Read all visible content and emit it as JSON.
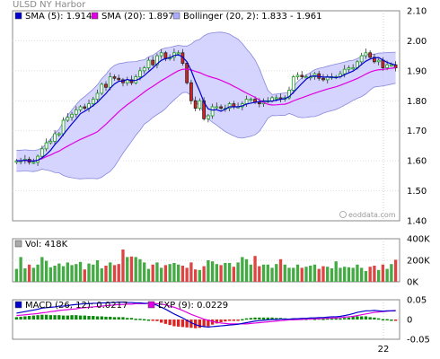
{
  "chart_data": [
    {
      "type": "candlestick",
      "title": "ULSD NY Harbor",
      "legend": [
        {
          "label": "SMA (5): 1.914",
          "color": "#0000cc"
        },
        {
          "label": "SMA (20): 1.897",
          "color": "#e000e0"
        },
        {
          "label": "Bollinger (20, 2): 1.833 - 1.961",
          "color": "#aaaaff"
        }
      ],
      "ylim": [
        1.4,
        2.1
      ],
      "yticks": [
        "2.10",
        "2.00",
        "1.90",
        "1.80",
        "1.70",
        "1.60",
        "1.50",
        "1.40"
      ],
      "close": [
        1.6,
        1.6,
        1.605,
        1.595,
        1.595,
        1.615,
        1.64,
        1.66,
        1.665,
        1.69,
        1.69,
        1.735,
        1.745,
        1.755,
        1.77,
        1.78,
        1.775,
        1.79,
        1.805,
        1.825,
        1.855,
        1.845,
        1.88,
        1.875,
        1.87,
        1.86,
        1.87,
        1.86,
        1.88,
        1.9,
        1.91,
        1.935,
        1.92,
        1.95,
        1.96,
        1.94,
        1.945,
        1.96,
        1.96,
        1.925,
        1.86,
        1.8,
        1.775,
        1.8,
        1.74,
        1.75,
        1.78,
        1.78,
        1.775,
        1.775,
        1.79,
        1.78,
        1.78,
        1.79,
        1.805,
        1.805,
        1.795,
        1.79,
        1.8,
        1.8,
        1.81,
        1.81,
        1.805,
        1.81,
        1.835,
        1.88,
        1.885,
        1.88,
        1.88,
        1.88,
        1.89,
        1.875,
        1.87,
        1.88,
        1.88,
        1.88,
        1.89,
        1.905,
        1.91,
        1.91,
        1.93,
        1.95,
        1.96,
        1.945,
        1.93,
        1.935,
        1.91,
        1.92,
        1.92,
        1.91
      ],
      "sma20_end": 1.897,
      "bollinger_end": [
        1.833,
        1.961
      ],
      "watermark": "eoddata.com"
    },
    {
      "type": "bar",
      "title": "Vol: 418K",
      "ylim": [
        0,
        400000
      ],
      "yticks": [
        "400K",
        "200K",
        "0K"
      ],
      "values": [
        120,
        230,
        125,
        160,
        130,
        160,
        230,
        195,
        135,
        150,
        170,
        145,
        180,
        155,
        165,
        185,
        115,
        170,
        160,
        200,
        125,
        150,
        180,
        155,
        165,
        300,
        230,
        235,
        230,
        210,
        180,
        120,
        160,
        180,
        130,
        155,
        165,
        175,
        160,
        150,
        130,
        180,
        115,
        110,
        145,
        200,
        190,
        165,
        155,
        175,
        175,
        140,
        180,
        230,
        210,
        160,
        240,
        145,
        160,
        160,
        130,
        165,
        210,
        160,
        130,
        130,
        160,
        130,
        140,
        150,
        160,
        120,
        145,
        140,
        125,
        190,
        130,
        140,
        135,
        130,
        160,
        130,
        100,
        140,
        150,
        110,
        160,
        120,
        165,
        205
      ]
    },
    {
      "type": "line",
      "title": "MACD",
      "legend": [
        {
          "label": "MACD (26, 12): 0.0217",
          "color": "#0000cc"
        },
        {
          "label": "EXP (9): 0.0229",
          "color": "#e000e0"
        }
      ],
      "ylim": [
        -0.05,
        0.05
      ],
      "yticks": [
        "0.05",
        "0",
        "-0.05"
      ],
      "xticks": [
        "22"
      ],
      "macd": [
        0.016,
        0.018,
        0.02,
        0.022,
        0.024,
        0.026,
        0.029,
        0.03,
        0.031,
        0.032,
        0.034,
        0.034,
        0.035,
        0.037,
        0.038,
        0.039,
        0.04,
        0.04,
        0.041,
        0.041,
        0.042,
        0.042,
        0.043,
        0.043,
        0.044,
        0.044,
        0.043,
        0.043,
        0.042,
        0.042,
        0.041,
        0.041,
        0.04,
        0.036,
        0.031,
        0.026,
        0.02,
        0.014,
        0.009,
        0.004,
        -0.002,
        -0.008,
        -0.013,
        -0.016,
        -0.018,
        -0.019,
        -0.018,
        -0.017,
        -0.016,
        -0.015,
        -0.014,
        -0.013,
        -0.012,
        -0.01,
        -0.008,
        -0.006,
        -0.004,
        -0.003,
        -0.002,
        -0.001,
        0.0,
        0.0,
        0.001,
        0.001,
        0.001,
        0.002,
        0.002,
        0.003,
        0.003,
        0.004,
        0.004,
        0.005,
        0.005,
        0.006,
        0.007,
        0.007,
        0.008,
        0.01,
        0.012,
        0.015,
        0.018,
        0.02,
        0.022,
        0.022,
        0.023,
        0.022,
        0.021,
        0.022,
        0.022,
        0.022
      ],
      "signal": [
        0.01,
        0.011,
        0.012,
        0.013,
        0.014,
        0.015,
        0.017,
        0.018,
        0.02,
        0.021,
        0.023,
        0.024,
        0.025,
        0.026,
        0.027,
        0.029,
        0.03,
        0.031,
        0.032,
        0.033,
        0.034,
        0.035,
        0.036,
        0.037,
        0.038,
        0.038,
        0.039,
        0.039,
        0.04,
        0.04,
        0.04,
        0.041,
        0.041,
        0.04,
        0.039,
        0.037,
        0.034,
        0.031,
        0.027,
        0.023,
        0.018,
        0.013,
        0.009,
        0.005,
        0.001,
        -0.002,
        -0.005,
        -0.007,
        -0.009,
        -0.01,
        -0.011,
        -0.011,
        -0.011,
        -0.011,
        -0.011,
        -0.01,
        -0.009,
        -0.008,
        -0.007,
        -0.006,
        -0.005,
        -0.004,
        -0.003,
        -0.002,
        -0.001,
        -0.001,
        0.0,
        0.0,
        0.001,
        0.001,
        0.002,
        0.002,
        0.003,
        0.003,
        0.004,
        0.004,
        0.005,
        0.006,
        0.007,
        0.008,
        0.01,
        0.012,
        0.014,
        0.016,
        0.018,
        0.019,
        0.02,
        0.021,
        0.022,
        0.023
      ]
    }
  ],
  "colors": {
    "up": "#1a9a1a",
    "down": "#dd2222",
    "sma5": "#0000cc",
    "sma20": "#e000e0",
    "band_fill": "#ccccff",
    "band_edge": "#8888dd",
    "vol_up": "#44aa44",
    "vol_down": "#dd4444",
    "hist": "#0a8a0a"
  }
}
